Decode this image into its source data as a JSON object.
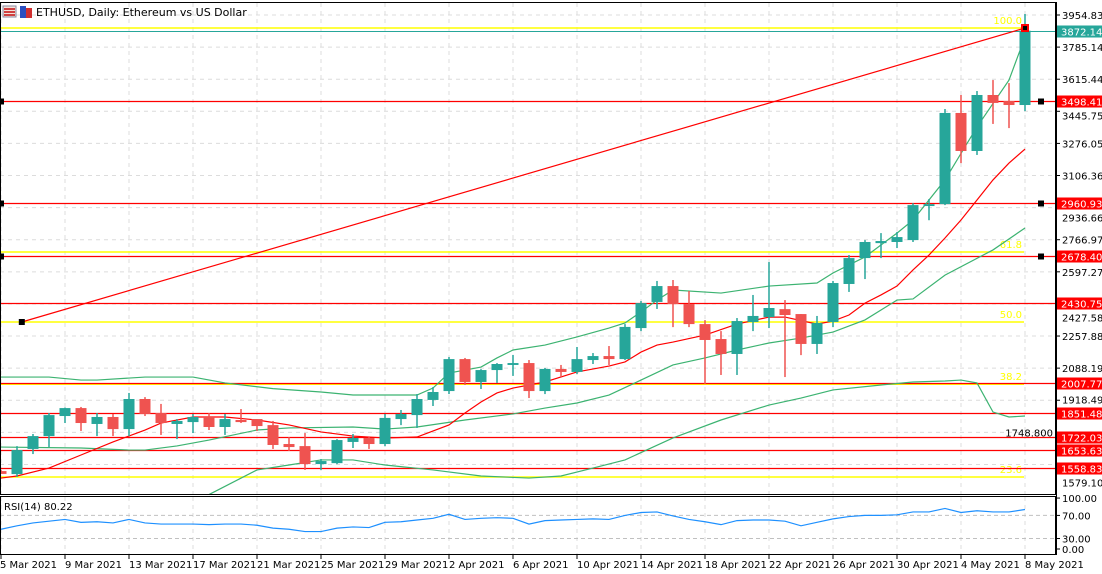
{
  "header": {
    "title": "ETHUSD, Daily:  Ethereum vs US Dollar"
  },
  "colors": {
    "bull": "#26a69a",
    "bear": "#ef5350",
    "level": "#ff0000",
    "fib": "#ffff00",
    "band": "#3cb371",
    "ma": "#ff0000",
    "rsi": "#1e90ff",
    "bid": "#26a69a"
  },
  "chart_data": {
    "type": "candlestick",
    "symbol": "ETHUSD",
    "timeframe": "Daily",
    "ylim": [
      1420,
      3990
    ],
    "price_ticks": [
      "3954.835",
      "3785.140",
      "3615.445",
      "3445.750",
      "3276.055",
      "3106.360",
      "2936.665",
      "2766.970",
      "2597.275",
      "2427.580",
      "2257.885",
      "2088.190",
      "1918.495",
      "1748.800",
      "1579.105"
    ],
    "date_ticks": [
      {
        "index": 0,
        "label": "5 Mar 2021"
      },
      {
        "index": 4,
        "label": "9 Mar 2021"
      },
      {
        "index": 8,
        "label": "13 Mar 2021"
      },
      {
        "index": 12,
        "label": "17 Mar 2021"
      },
      {
        "index": 16,
        "label": "21 Mar 2021"
      },
      {
        "index": 20,
        "label": "25 Mar 2021"
      },
      {
        "index": 24,
        "label": "29 Mar 2021"
      },
      {
        "index": 28,
        "label": "2 Apr 2021"
      },
      {
        "index": 32,
        "label": "6 Apr 2021"
      },
      {
        "index": 36,
        "label": "10 Apr 2021"
      },
      {
        "index": 40,
        "label": "14 Apr 2021"
      },
      {
        "index": 44,
        "label": "18 Apr 2021"
      },
      {
        "index": 48,
        "label": "22 Apr 2021"
      },
      {
        "index": 52,
        "label": "26 Apr 2021"
      },
      {
        "index": 56,
        "label": "30 Apr 2021"
      },
      {
        "index": 60,
        "label": "4 May 2021"
      },
      {
        "index": 64,
        "label": "8 May 2021"
      }
    ],
    "ohlc": [
      [
        1544,
        1550,
        1530,
        1529
      ],
      [
        1528,
        1676,
        1513,
        1655
      ],
      [
        1661,
        1740,
        1634,
        1729
      ],
      [
        1729,
        1851,
        1671,
        1840
      ],
      [
        1835,
        1880,
        1798,
        1877
      ],
      [
        1877,
        1883,
        1756,
        1798
      ],
      [
        1793,
        1851,
        1729,
        1830
      ],
      [
        1830,
        1846,
        1729,
        1766
      ],
      [
        1766,
        1957,
        1729,
        1925
      ],
      [
        1925,
        1935,
        1835,
        1846
      ],
      [
        1851,
        1899,
        1735,
        1798
      ],
      [
        1793,
        1819,
        1713,
        1809
      ],
      [
        1803,
        1846,
        1745,
        1830
      ],
      [
        1830,
        1851,
        1761,
        1777
      ],
      [
        1777,
        1846,
        1735,
        1819
      ],
      [
        1814,
        1872,
        1798,
        1803
      ],
      [
        1819,
        1819,
        1756,
        1782
      ],
      [
        1787,
        1809,
        1661,
        1682
      ],
      [
        1687,
        1724,
        1650,
        1671
      ],
      [
        1676,
        1745,
        1550,
        1581
      ],
      [
        1581,
        1608,
        1550,
        1597
      ],
      [
        1586,
        1713,
        1581,
        1708
      ],
      [
        1698,
        1740,
        1666,
        1719
      ],
      [
        1719,
        1724,
        1661,
        1687
      ],
      [
        1687,
        1846,
        1676,
        1825
      ],
      [
        1819,
        1867,
        1787,
        1846
      ],
      [
        1840,
        1951,
        1772,
        1925
      ],
      [
        1920,
        1988,
        1888,
        1962
      ],
      [
        1967,
        2147,
        1951,
        2136
      ],
      [
        2136,
        2142,
        1999,
        2015
      ],
      [
        2015,
        2083,
        1978,
        2078
      ],
      [
        2078,
        2115,
        2010,
        2110
      ],
      [
        2105,
        2158,
        2047,
        2115
      ],
      [
        2115,
        2131,
        1930,
        1967
      ],
      [
        1967,
        2089,
        1951,
        2084
      ],
      [
        2084,
        2105,
        2041,
        2068
      ],
      [
        2068,
        2200,
        2057,
        2136
      ],
      [
        2131,
        2168,
        2110,
        2152
      ],
      [
        2152,
        2205,
        2105,
        2136
      ],
      [
        2136,
        2321,
        2131,
        2306
      ],
      [
        2300,
        2443,
        2284,
        2432
      ],
      [
        2438,
        2549,
        2401,
        2522
      ],
      [
        2522,
        2554,
        2305,
        2427
      ],
      [
        2427,
        2496,
        2305,
        2321
      ],
      [
        2321,
        2342,
        2004,
        2237
      ],
      [
        2242,
        2284,
        2052,
        2163
      ],
      [
        2163,
        2353,
        2052,
        2337
      ],
      [
        2332,
        2475,
        2284,
        2364
      ],
      [
        2358,
        2649,
        2300,
        2406
      ],
      [
        2400,
        2448,
        2041,
        2369
      ],
      [
        2374,
        2374,
        2157,
        2216
      ],
      [
        2216,
        2364,
        2163,
        2327
      ],
      [
        2332,
        2549,
        2305,
        2538
      ],
      [
        2533,
        2686,
        2491,
        2670
      ],
      [
        2670,
        2765,
        2559,
        2755
      ],
      [
        2749,
        2802,
        2670,
        2760
      ],
      [
        2755,
        2808,
        2723,
        2781
      ],
      [
        2765,
        2960,
        2755,
        2950
      ],
      [
        2945,
        2982,
        2870,
        2955
      ],
      [
        2955,
        3458,
        2950,
        3437
      ],
      [
        3437,
        3532,
        3172,
        3236
      ],
      [
        3236,
        3553,
        3215,
        3532
      ],
      [
        3532,
        3611,
        3379,
        3490
      ],
      [
        3500,
        3595,
        3357,
        3479
      ],
      [
        3479,
        3960,
        3447,
        3872.14
      ]
    ],
    "moving_average": [
      [
        0,
        1507
      ],
      [
        1,
        1518
      ],
      [
        3,
        1560
      ],
      [
        5,
        1629
      ],
      [
        7,
        1698
      ],
      [
        9,
        1761
      ],
      [
        10,
        1798
      ],
      [
        12,
        1830
      ],
      [
        14,
        1830
      ],
      [
        16,
        1814
      ],
      [
        18,
        1788
      ],
      [
        20,
        1751
      ],
      [
        22,
        1729
      ],
      [
        24,
        1719
      ],
      [
        26,
        1724
      ],
      [
        28,
        1788
      ],
      [
        29,
        1851
      ],
      [
        30,
        1909
      ],
      [
        31,
        1957
      ],
      [
        32,
        1983
      ],
      [
        33,
        1999
      ],
      [
        34,
        2015
      ],
      [
        36,
        2068
      ],
      [
        38,
        2099
      ],
      [
        39,
        2121
      ],
      [
        40,
        2173
      ],
      [
        41,
        2210
      ],
      [
        42,
        2226
      ],
      [
        44,
        2263
      ],
      [
        46,
        2321
      ],
      [
        48,
        2358
      ],
      [
        49,
        2358
      ],
      [
        51,
        2321
      ],
      [
        52,
        2337
      ],
      [
        53,
        2369
      ],
      [
        54,
        2432
      ],
      [
        55,
        2475
      ],
      [
        56,
        2522
      ],
      [
        57,
        2607
      ],
      [
        58,
        2686
      ],
      [
        59,
        2776
      ],
      [
        60,
        2871
      ],
      [
        61,
        2977
      ],
      [
        62,
        3083
      ],
      [
        63,
        3172
      ],
      [
        64,
        3246
      ]
    ],
    "bollinger_upper": [
      [
        0,
        2041
      ],
      [
        3,
        2041
      ],
      [
        5,
        2025
      ],
      [
        6,
        2025
      ],
      [
        9,
        2041
      ],
      [
        12,
        2041
      ],
      [
        14,
        2010
      ],
      [
        17,
        1980
      ],
      [
        20,
        1962
      ],
      [
        22,
        1946
      ],
      [
        26,
        1946
      ],
      [
        27,
        1983
      ],
      [
        28,
        2062
      ],
      [
        30,
        2094
      ],
      [
        31,
        2142
      ],
      [
        32,
        2184
      ],
      [
        34,
        2210
      ],
      [
        36,
        2253
      ],
      [
        38,
        2300
      ],
      [
        39,
        2327
      ],
      [
        40,
        2385
      ],
      [
        41,
        2448
      ],
      [
        42,
        2501
      ],
      [
        45,
        2485
      ],
      [
        48,
        2522
      ],
      [
        51,
        2538
      ],
      [
        52,
        2591
      ],
      [
        54,
        2676
      ],
      [
        56,
        2802
      ],
      [
        57,
        2871
      ],
      [
        59,
        3083
      ],
      [
        61,
        3363
      ],
      [
        63,
        3611
      ],
      [
        64,
        3839
      ]
    ],
    "bollinger_middle": [
      [
        0,
        1671
      ],
      [
        5,
        1666
      ],
      [
        8,
        1655
      ],
      [
        9,
        1655
      ],
      [
        11,
        1677
      ],
      [
        13,
        1708
      ],
      [
        16,
        1761
      ],
      [
        18,
        1772
      ],
      [
        22,
        1777
      ],
      [
        24,
        1766
      ],
      [
        26,
        1777
      ],
      [
        29,
        1814
      ],
      [
        32,
        1846
      ],
      [
        34,
        1877
      ],
      [
        36,
        1904
      ],
      [
        38,
        1946
      ],
      [
        40,
        2025
      ],
      [
        42,
        2105
      ],
      [
        44,
        2142
      ],
      [
        46,
        2184
      ],
      [
        48,
        2221
      ],
      [
        50,
        2247
      ],
      [
        52,
        2279
      ],
      [
        54,
        2343
      ],
      [
        56,
        2448
      ],
      [
        57,
        2454
      ],
      [
        59,
        2580
      ],
      [
        62,
        2713
      ],
      [
        64,
        2829
      ]
    ],
    "bollinger_lower": [
      [
        13,
        1418
      ],
      [
        16,
        1550
      ],
      [
        18,
        1576
      ],
      [
        20,
        1603
      ],
      [
        22,
        1603
      ],
      [
        24,
        1576
      ],
      [
        27,
        1550
      ],
      [
        30,
        1518
      ],
      [
        33,
        1507
      ],
      [
        35,
        1518
      ],
      [
        37,
        1560
      ],
      [
        39,
        1603
      ],
      [
        42,
        1719
      ],
      [
        45,
        1814
      ],
      [
        48,
        1893
      ],
      [
        50,
        1930
      ],
      [
        52,
        1973
      ],
      [
        55,
        1999
      ],
      [
        57,
        2015
      ],
      [
        59,
        2020
      ],
      [
        60,
        2025
      ],
      [
        61,
        2010
      ],
      [
        62,
        1856
      ],
      [
        63,
        1830
      ],
      [
        64,
        1835
      ]
    ],
    "levels": [
      {
        "price": 3498.419,
        "label": "3498.419",
        "markers": true
      },
      {
        "price": 2960.93,
        "label": "2960.930",
        "markers": true
      },
      {
        "price": 2678.403,
        "label": "2678.403",
        "markers": true
      },
      {
        "price": 2430.754,
        "label": "2430.754",
        "markers": false
      },
      {
        "price": 2007.771,
        "label": "2007.771",
        "markers": false
      },
      {
        "price": 1851.484,
        "label": "1851.484",
        "markers": false
      },
      {
        "price": 1722.036,
        "label": "1722.036",
        "markers": false
      },
      {
        "price": 1653.631,
        "label": "1653.631",
        "markers": false
      },
      {
        "price": 1558.839,
        "label": "1558.839",
        "markers": false
      }
    ],
    "bid": {
      "price": 3872.14,
      "label": "3872.140"
    },
    "fibonacci": [
      {
        "level": "100.0",
        "price": 3886
      },
      {
        "level": "61.8",
        "price": 2702
      },
      {
        "level": "50.0",
        "price": 2332
      },
      {
        "level": "38.2",
        "price": 2003
      },
      {
        "level": "23.6",
        "price": 1513
      }
    ],
    "trendline": {
      "from": [
        1.3,
        2332
      ],
      "to": [
        64,
        3886
      ]
    },
    "rsi": {
      "label": "RSI(14) 80.22",
      "period": 14,
      "ticks": [
        "100.00",
        "70.00",
        "30.00",
        "0.00"
      ],
      "levels": [
        70,
        30
      ],
      "values": [
        46,
        52,
        57,
        60,
        63,
        58,
        59,
        57,
        63,
        57,
        55,
        55,
        55,
        54,
        55,
        55,
        53,
        48,
        46,
        42,
        42,
        48,
        50,
        49,
        58,
        59,
        62,
        65,
        72,
        63,
        65,
        66,
        65,
        55,
        61,
        62,
        63,
        64,
        63,
        70,
        75,
        76,
        69,
        63,
        59,
        54,
        61,
        62,
        62,
        60,
        52,
        58,
        64,
        68,
        70,
        70,
        71,
        76,
        76,
        82,
        75,
        78,
        76,
        76,
        80.22
      ]
    }
  }
}
